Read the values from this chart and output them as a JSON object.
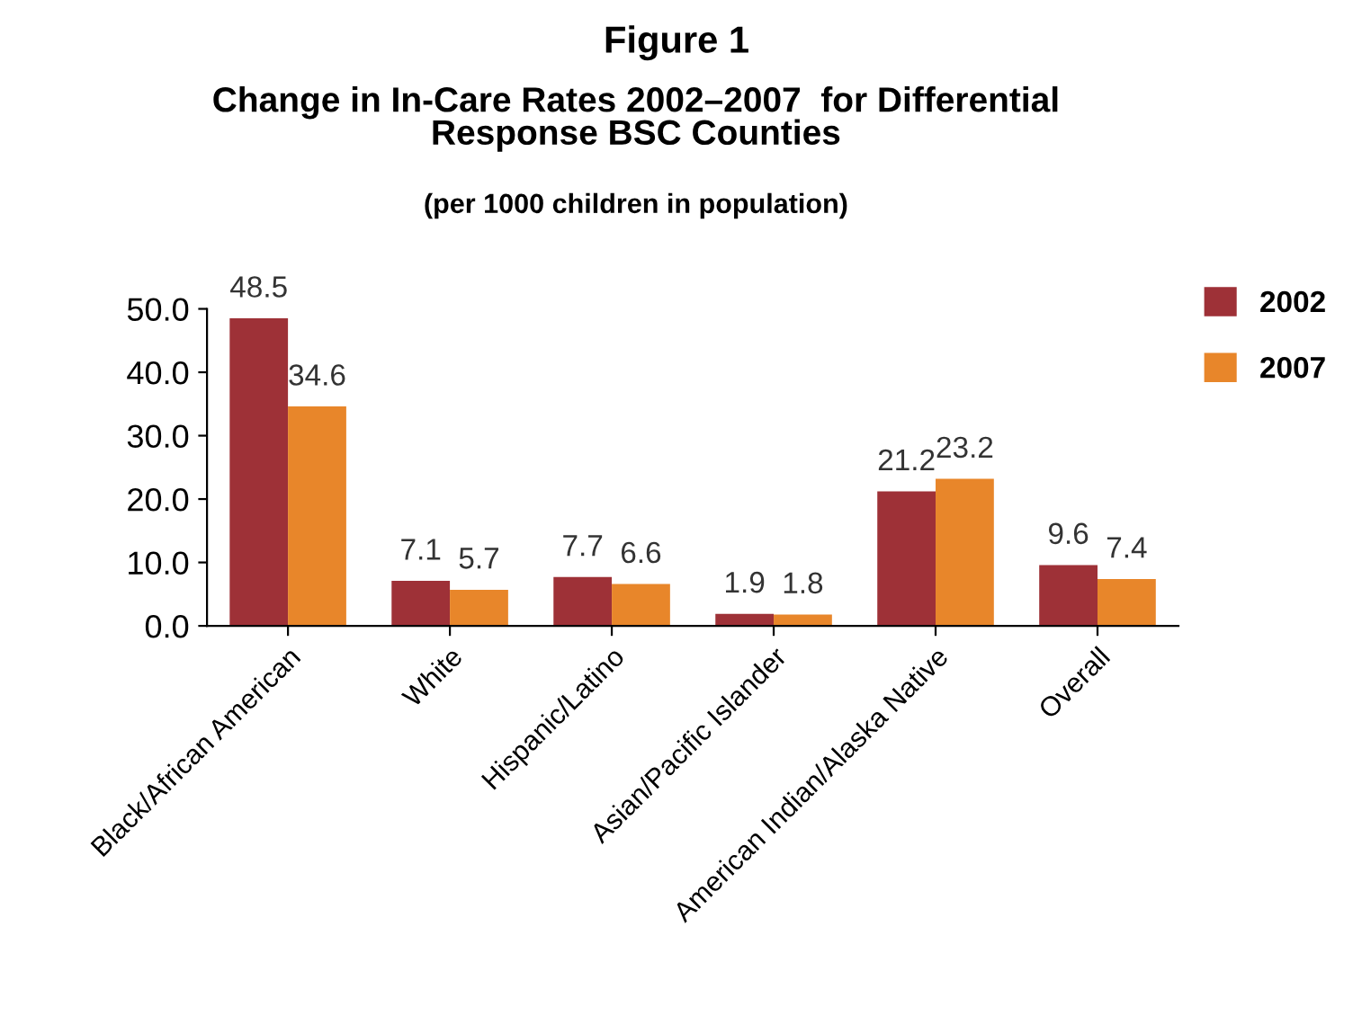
{
  "chart_data": {
    "type": "bar",
    "title": "Figure 1",
    "subtitle": "Change in In-Care Rates 2002–2007  for Differential\nResponse BSC Counties",
    "annotations": [
      "(per 1000 children in population)"
    ],
    "categories": [
      "Black/African American",
      "White",
      "Hispanic/Latino",
      "Asian/Pacific Islander",
      "American Indian/Alaska Native",
      "Overall"
    ],
    "series": [
      {
        "name": "2002",
        "color": "#9e3137",
        "values": [
          48.5,
          7.1,
          7.7,
          1.9,
          21.2,
          9.6
        ]
      },
      {
        "name": "2007",
        "color": "#e8862a",
        "values": [
          34.6,
          5.7,
          6.6,
          1.8,
          23.2,
          7.4
        ]
      }
    ],
    "ylim": [
      0,
      50
    ],
    "yticks": [
      {
        "value": 0,
        "label": "0.0"
      },
      {
        "value": 10,
        "label": "10.0"
      },
      {
        "value": 20,
        "label": "20.0"
      },
      {
        "value": 30,
        "label": "30.0"
      },
      {
        "value": 40,
        "label": "40.0"
      },
      {
        "value": 50,
        "label": "50.0"
      }
    ],
    "data_labels": true,
    "legend": "right",
    "grid": false
  }
}
